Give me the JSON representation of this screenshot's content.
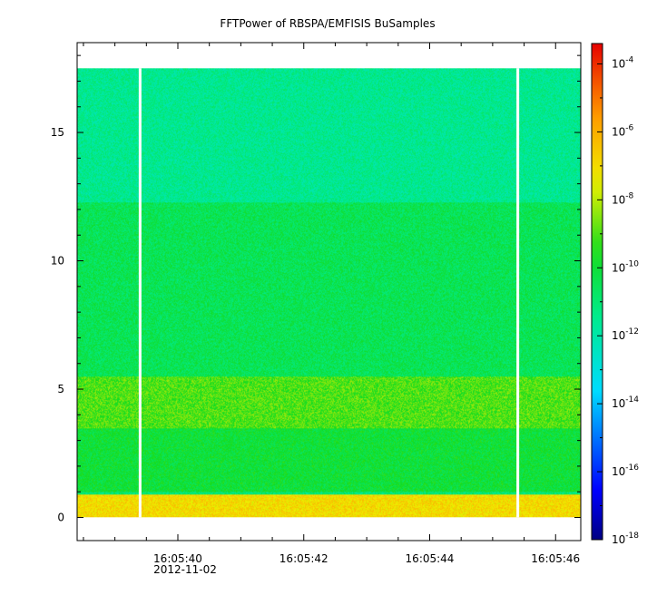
{
  "chart_data": {
    "type": "heatmap",
    "title": "FFTPower of RBSPA/EMFISIS  BuSamples",
    "xlabel": "",
    "ylabel": "",
    "x_ticks": [
      "16:05:40",
      "16:05:42",
      "16:05:44",
      "16:05:46"
    ],
    "x_date_label": "2012-11-02",
    "x_range": [
      "16:05:38.4",
      "16:05:46.4"
    ],
    "y_ticks": [
      0,
      5,
      10,
      15
    ],
    "ylim": [
      -0.9,
      18.5
    ],
    "data_ylim": [
      0,
      17.5
    ],
    "colorbar": {
      "scale": "log",
      "range_exponents": [
        -18,
        -3.4
      ],
      "ticks": [
        {
          "base": "10",
          "exp": "-4"
        },
        {
          "base": "10",
          "exp": "-6"
        },
        {
          "base": "10",
          "exp": "-8"
        },
        {
          "base": "10",
          "exp": "-10"
        },
        {
          "base": "10",
          "exp": "-12"
        },
        {
          "base": "10",
          "exp": "-14"
        },
        {
          "base": "10",
          "exp": "-16"
        },
        {
          "base": "10",
          "exp": "-18"
        }
      ]
    },
    "data_gaps": [
      "16:05:39.4",
      "16:05:45.4"
    ],
    "features": [
      {
        "y_range": [
          0,
          0.9
        ],
        "level_exp": -7
      },
      {
        "y_range": [
          3.5,
          5.5
        ],
        "level_exp": -9
      },
      {
        "y_range": [
          1,
          3.5
        ],
        "level_exp": -10
      },
      {
        "y_range": [
          5.5,
          12.3
        ],
        "level_exp": -10.5
      },
      {
        "y_range": [
          12.3,
          17.5
        ],
        "level_exp": -11.5
      }
    ]
  },
  "colors": {
    "background": "#ffffff",
    "axis": "#000000",
    "gap": "#ffffff"
  }
}
